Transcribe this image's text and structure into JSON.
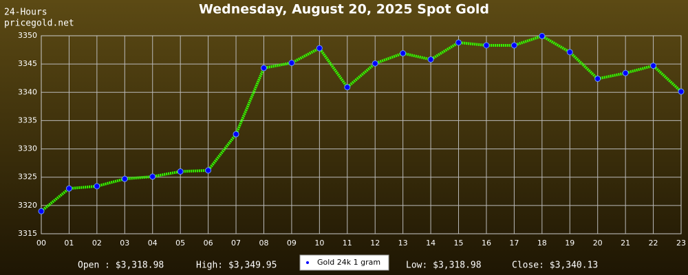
{
  "chart_data": {
    "type": "line",
    "title": "Wednesday, August 20, 2025 Spot Gold",
    "period_label": "24-Hours",
    "source": "pricegold.net",
    "categories": [
      "00",
      "01",
      "02",
      "03",
      "04",
      "05",
      "06",
      "07",
      "08",
      "09",
      "10",
      "11",
      "12",
      "13",
      "14",
      "15",
      "16",
      "17",
      "18",
      "19",
      "20",
      "21",
      "22",
      "23"
    ],
    "series": [
      {
        "name": "Gold 24k 1 gram",
        "color": "#33ff00",
        "marker_color": "#0000ff",
        "values": [
          3318.98,
          3323.0,
          3323.4,
          3324.7,
          3325.1,
          3326.0,
          3326.2,
          3332.6,
          3344.3,
          3345.2,
          3347.8,
          3340.9,
          3345.1,
          3346.9,
          3345.8,
          3348.8,
          3348.3,
          3348.3,
          3349.95,
          3347.1,
          3342.4,
          3343.4,
          3344.7,
          3340.13
        ]
      }
    ],
    "ylim": [
      3315,
      3350
    ],
    "yticks": [
      3315,
      3320,
      3325,
      3330,
      3335,
      3340,
      3345,
      3350
    ],
    "grid": true,
    "stats": [
      "Open : $3,318.98",
      "High: $3,349.95",
      "Low: $3,318.98",
      "Close: $3,340.13"
    ]
  }
}
